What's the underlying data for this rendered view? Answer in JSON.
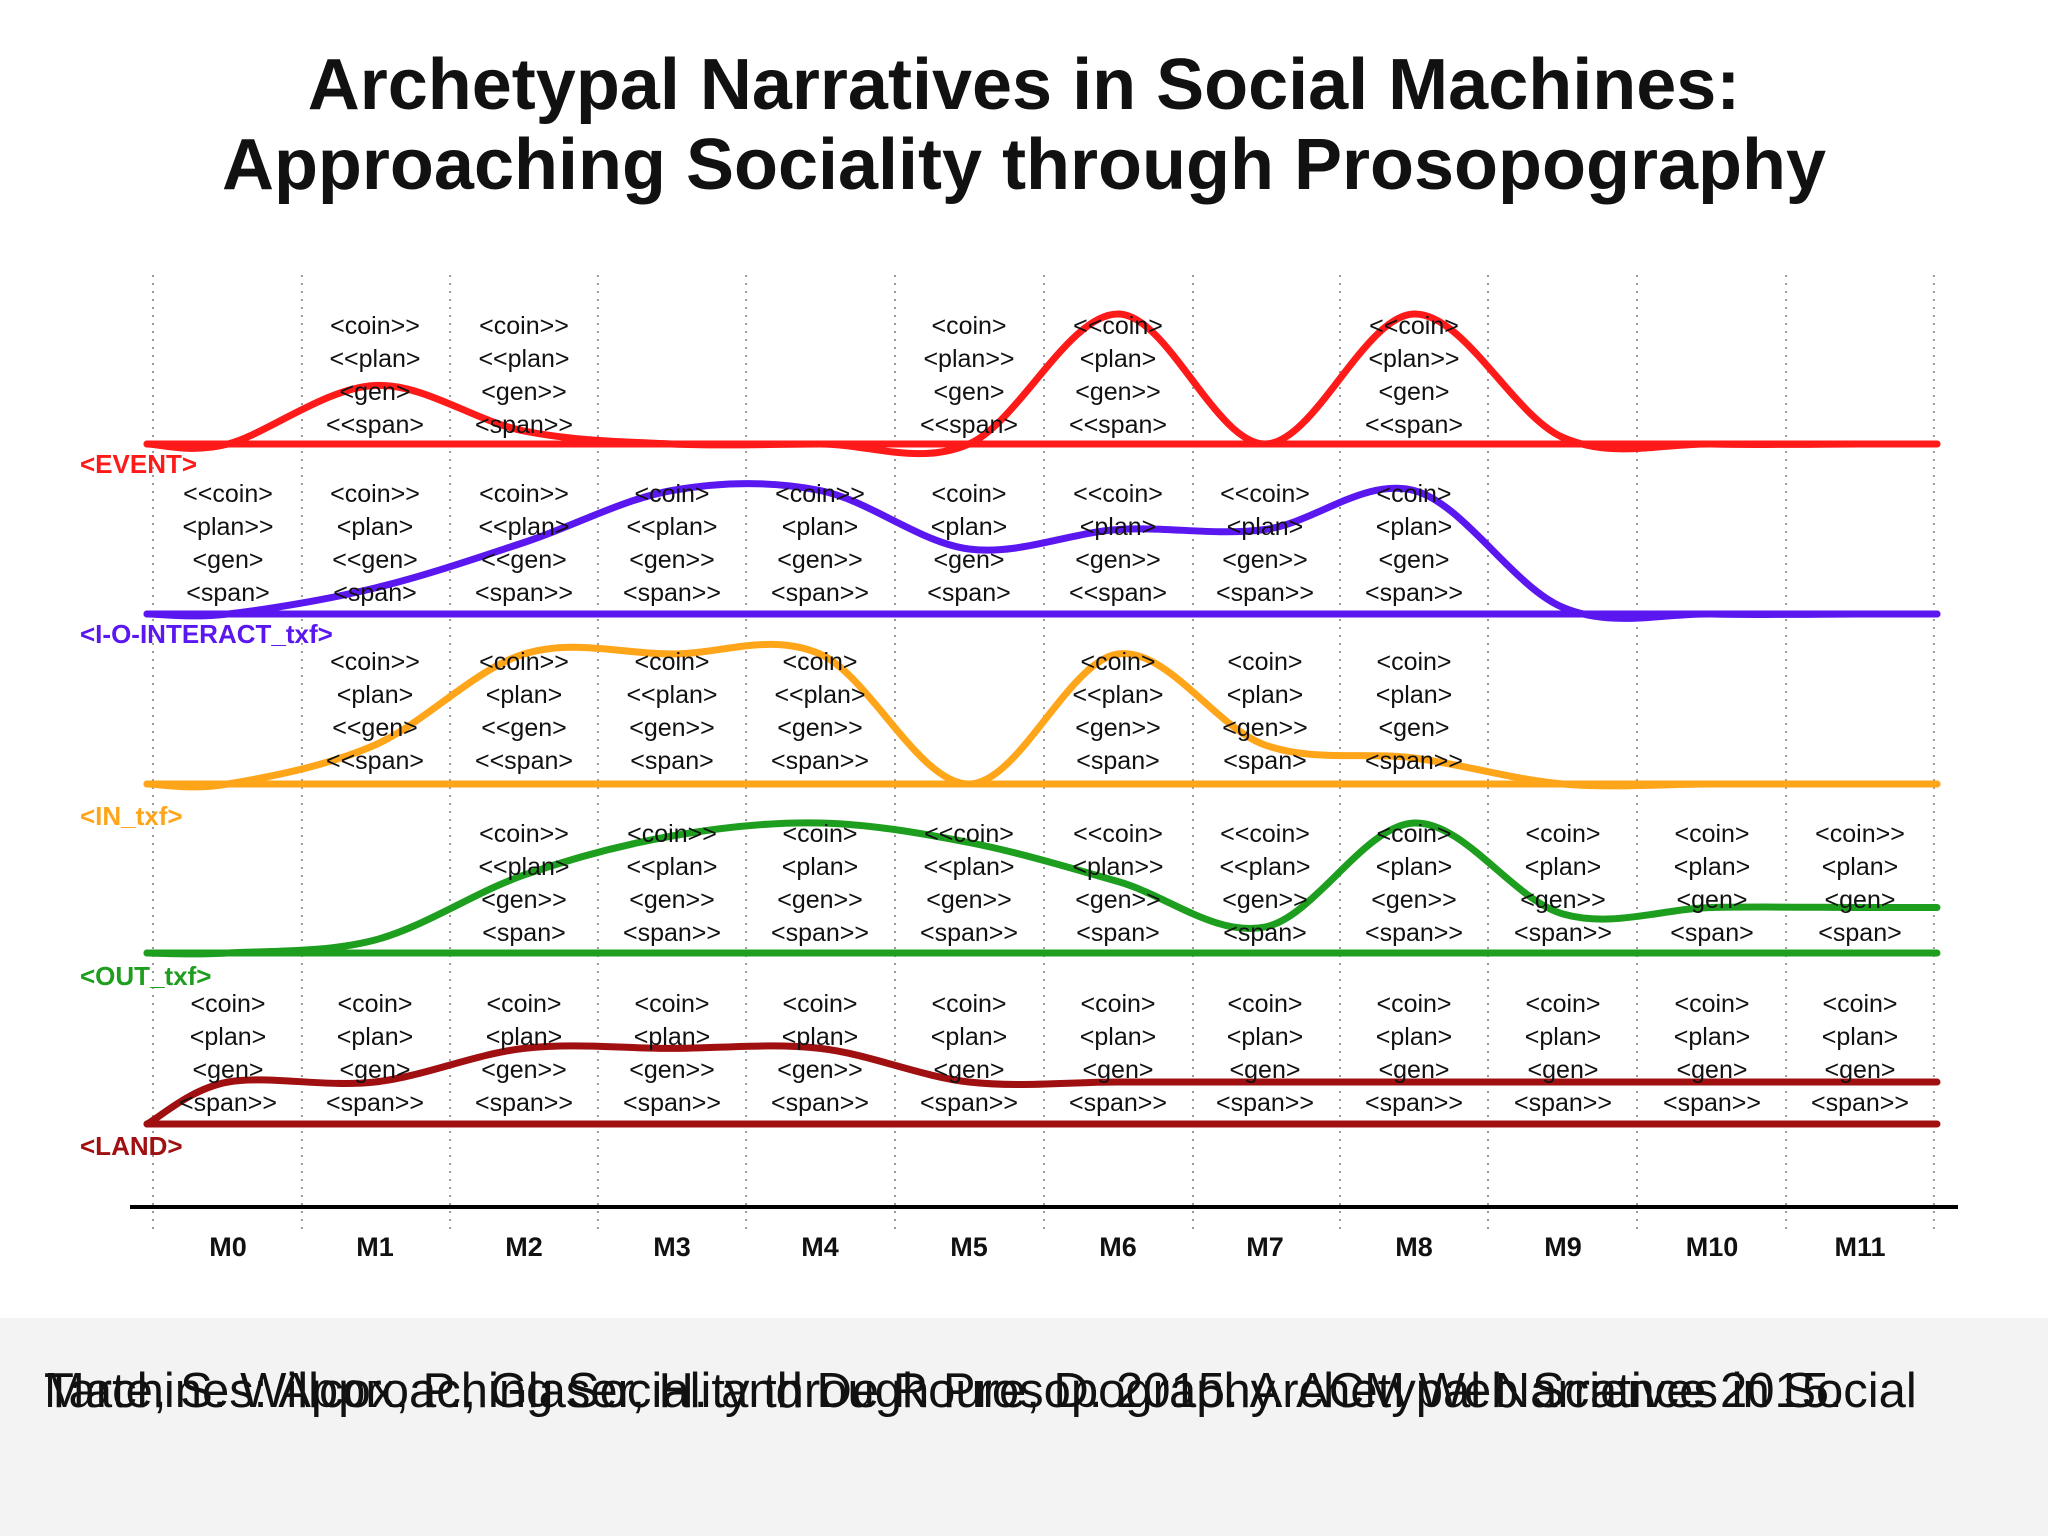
{
  "title": {
    "line1": "Archetypal Narratives in Social Machines:",
    "line2": "Approaching Sociality through Prosopography"
  },
  "caption": {
    "line1": "Tarte, S. Willcox, P., Glaser, H. and De Roure, D. 2015. Archetypal Narratives in Social",
    "line2": "Machines: Approaching Sociality through Prosopography. ACM Web Science 2015."
  },
  "chart_data": {
    "type": "line",
    "x": [
      "M0",
      "M1",
      "M2",
      "M3",
      "M4",
      "M5",
      "M6",
      "M7",
      "M8",
      "M9",
      "M10",
      "M11"
    ],
    "grid": "vertical dotted",
    "series": [
      {
        "name": "<EVENT>",
        "color": "#ff1a1a",
        "values": [
          0.0,
          0.45,
          0.1,
          0.0,
          0.0,
          0.0,
          1.0,
          0.0,
          1.0,
          0.05,
          0.0,
          0.0
        ],
        "labels": [
          null,
          [
            "<coin>>",
            "<<plan>",
            "<gen>",
            "<<span>"
          ],
          [
            "<coin>>",
            "<<plan>",
            "<gen>>",
            "<span>>"
          ],
          null,
          null,
          [
            "<coin>",
            "<plan>>",
            "<gen>",
            "<<span>"
          ],
          [
            "<<coin>",
            "<plan>",
            "<gen>>",
            "<<span>"
          ],
          null,
          [
            "<<coin>",
            "<plan>>",
            "<gen>",
            "<<span>"
          ],
          null,
          null,
          null
        ]
      },
      {
        "name": "<I-O-INTERACT_txf>",
        "color": "#5a17f0",
        "values": [
          0.0,
          0.2,
          0.55,
          0.95,
          0.95,
          0.5,
          0.65,
          0.65,
          0.95,
          0.05,
          0.0,
          0.0
        ],
        "labels": [
          [
            "<<coin>",
            "<plan>>",
            "<gen>",
            "<span>"
          ],
          [
            "<coin>>",
            "<plan>",
            "<<gen>",
            "<span>"
          ],
          [
            "<coin>>",
            "<<plan>",
            "<<gen>",
            "<span>>"
          ],
          [
            "<coin>",
            "<<plan>",
            "<gen>>",
            "<span>>"
          ],
          [
            "<coin>>",
            "<plan>",
            "<gen>>",
            "<span>>"
          ],
          [
            "<coin>",
            "<plan>",
            "<gen>",
            "<span>"
          ],
          [
            "<<coin>",
            "<plan>",
            "<gen>>",
            "<<span>"
          ],
          [
            "<<coin>",
            "<plan>",
            "<gen>>",
            "<span>>"
          ],
          [
            "<coin>",
            "<plan>",
            "<gen>",
            "<span>>"
          ],
          null,
          null,
          null
        ]
      },
      {
        "name": "<IN_txf>",
        "color": "#ffa51a",
        "values": [
          0.0,
          0.3,
          1.0,
          1.0,
          1.0,
          0.0,
          1.0,
          0.3,
          0.2,
          0.0,
          0.0,
          0.0
        ],
        "labels": [
          null,
          [
            "<coin>>",
            "<plan>",
            "<<gen>",
            "<<span>"
          ],
          [
            "<coin>>",
            "<plan>",
            "<<gen>",
            "<<span>"
          ],
          [
            "<coin>",
            "<<plan>",
            "<gen>>",
            "<span>"
          ],
          [
            "<coin>",
            "<<plan>",
            "<gen>>",
            "<span>>"
          ],
          null,
          [
            "<coin>",
            "<<plan>",
            "<gen>>",
            "<span>"
          ],
          [
            "<coin>",
            "<plan>",
            "<gen>>",
            "<span>"
          ],
          [
            "<coin>",
            "<plan>",
            "<gen>",
            "<span>>"
          ],
          null,
          null,
          null
        ]
      },
      {
        "name": "<OUT_txf>",
        "color": "#1e9e1e",
        "values": [
          0.0,
          0.1,
          0.6,
          0.9,
          1.0,
          0.85,
          0.55,
          0.2,
          1.0,
          0.3,
          0.35,
          0.35
        ],
        "labels": [
          null,
          null,
          [
            "<coin>>",
            "<<plan>",
            "<gen>>",
            "<span>"
          ],
          [
            "<coin>>",
            "<<plan>",
            "<gen>>",
            "<span>>"
          ],
          [
            "<coin>",
            "<plan>",
            "<gen>>",
            "<span>>"
          ],
          [
            "<<coin>",
            "<<plan>",
            "<gen>>",
            "<span>>"
          ],
          [
            "<<coin>",
            "<plan>>",
            "<gen>>",
            "<span>"
          ],
          [
            "<<coin>",
            "<<plan>",
            "<gen>>",
            "<span>"
          ],
          [
            "<coin>",
            "<plan>",
            "<gen>>",
            "<span>>"
          ],
          [
            "<coin>",
            "<plan>",
            "<gen>>",
            "<span>>"
          ],
          [
            "<coin>",
            "<plan>",
            "<gen>",
            "<span>"
          ],
          [
            "<coin>>",
            "<plan>",
            "<gen>",
            "<span>"
          ]
        ]
      },
      {
        "name": "<LAND>",
        "color": "#a01010",
        "values": [
          1.0,
          1.0,
          1.8,
          1.8,
          1.8,
          1.0,
          1.0,
          1.0,
          1.0,
          1.0,
          1.0,
          1.0
        ],
        "labels": [
          [
            "<coin>",
            "<plan>",
            "<gen>",
            "<span>>"
          ],
          [
            "<coin>",
            "<plan>",
            "<gen>",
            "<span>>"
          ],
          [
            "<coin>",
            "<plan>",
            "<gen>>",
            "<span>>"
          ],
          [
            "<coin>",
            "<plan>",
            "<gen>>",
            "<span>>"
          ],
          [
            "<coin>",
            "<plan>",
            "<gen>>",
            "<span>>"
          ],
          [
            "<coin>",
            "<plan>",
            "<gen>",
            "<span>>"
          ],
          [
            "<coin>",
            "<plan>",
            "<gen>",
            "<span>>"
          ],
          [
            "<coin>",
            "<plan>",
            "<gen>",
            "<span>>"
          ],
          [
            "<coin>",
            "<plan>",
            "<gen>",
            "<span>>"
          ],
          [
            "<coin>",
            "<plan>",
            "<gen>",
            "<span>>"
          ],
          [
            "<coin>",
            "<plan>",
            "<gen>",
            "<span>>"
          ],
          [
            "<coin>",
            "<plan>",
            "<gen>",
            "<span>>"
          ]
        ]
      }
    ]
  }
}
